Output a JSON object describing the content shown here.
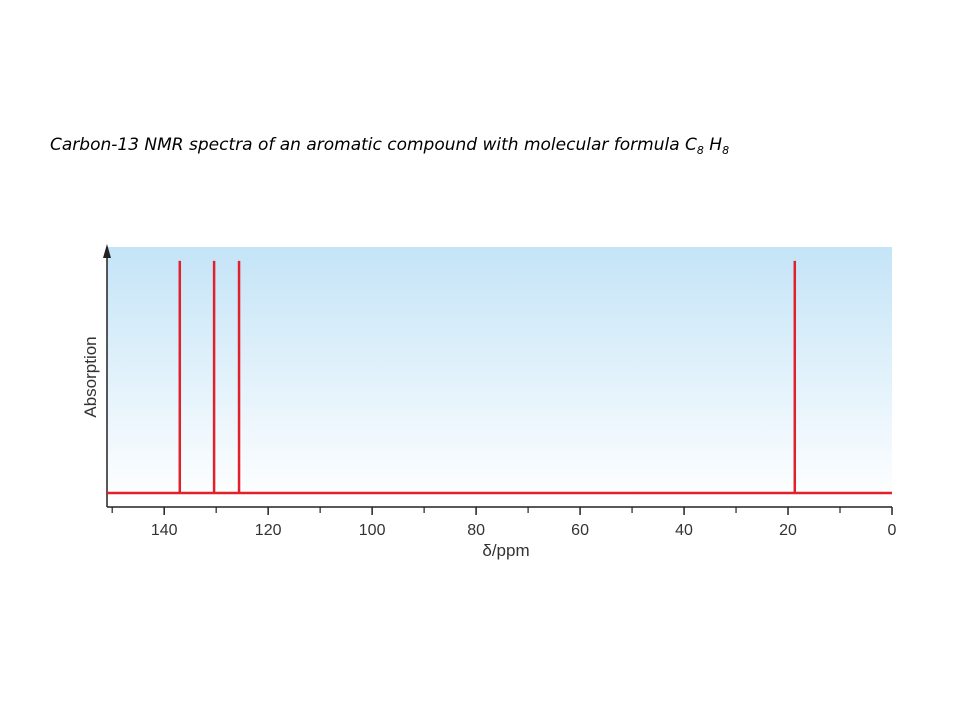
{
  "chart_data": {
    "type": "stem",
    "title_parts": [
      "Carbon-13 NMR spectra of an aromatic compound with molecular formula C",
      "8",
      " H",
      "8"
    ],
    "x_label": "δ/ppm",
    "y_label": "Absorption",
    "x": [
      137.0,
      130.4,
      125.6,
      18.7
    ],
    "values": [
      1,
      1,
      1,
      1
    ],
    "color": "#e0202a",
    "xlim": [
      151,
      0
    ],
    "xticks": [
      0,
      20,
      40,
      60,
      80,
      100,
      120,
      140
    ],
    "xticks_minor": [
      10,
      30,
      50,
      70,
      90,
      110,
      130,
      150
    ],
    "ylim": [
      0,
      1.06
    ]
  }
}
